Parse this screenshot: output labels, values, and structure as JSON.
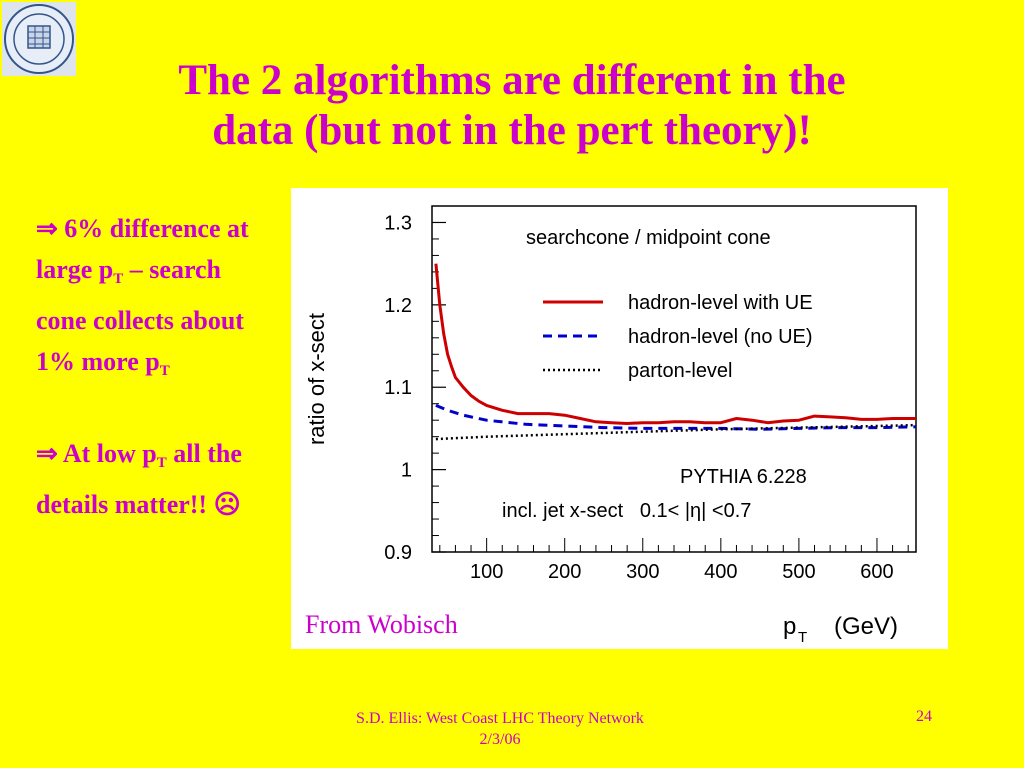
{
  "slide": {
    "title_line1": "The 2 algorithms are different in the",
    "title_line2": "data (but not in the pert theory)!",
    "bullet1": {
      "arrow": "⇒",
      "text1": " 6% difference at large p",
      "sub": "T",
      "text2": " – search cone collects about 1% more p",
      "sub2": "T"
    },
    "bullet2": {
      "arrow": "⇒",
      "text1": " At low p",
      "sub": "T",
      "text2": " all the details matter!! ",
      "emoji": "☹"
    },
    "source_note": "From Wobisch",
    "footer_line1": "S.D. Ellis: West Coast LHC Theory Network",
    "footer_line2": "2/3/06",
    "page_number": "24",
    "colors": {
      "background": "#ffff00",
      "text": "#cc00cc"
    }
  },
  "chart_data": {
    "type": "line",
    "title": "searchcone / midpoint cone",
    "ylabel": "ratio of x-sect",
    "xlabel_main": "p",
    "xlabel_sub": "T",
    "xlabel_unit": "(GeV)",
    "xlim": [
      30,
      650
    ],
    "ylim": [
      0.9,
      1.32
    ],
    "xticks": [
      100,
      200,
      300,
      400,
      500,
      600
    ],
    "yticks": [
      0.9,
      1,
      1.1,
      1.2,
      1.3
    ],
    "ytick_labels": [
      "0.9",
      "1",
      "1.1",
      "1.2",
      "1.3"
    ],
    "annotation1": "PYTHIA 6.228",
    "annotation2": "incl. jet x-sect   0.1< |η| <0.7",
    "legend_position": "top-right",
    "grid": false,
    "series": [
      {
        "name": "hadron-level with UE",
        "color": "#cc0000",
        "dash": "solid",
        "x": [
          35,
          40,
          45,
          50,
          55,
          60,
          70,
          80,
          90,
          100,
          120,
          140,
          160,
          180,
          200,
          220,
          240,
          260,
          280,
          300,
          320,
          340,
          360,
          380,
          400,
          420,
          440,
          460,
          480,
          500,
          520,
          540,
          560,
          580,
          600,
          620,
          650
        ],
        "y": [
          1.25,
          1.2,
          1.165,
          1.14,
          1.125,
          1.112,
          1.1,
          1.09,
          1.083,
          1.078,
          1.072,
          1.068,
          1.068,
          1.068,
          1.066,
          1.062,
          1.058,
          1.057,
          1.056,
          1.057,
          1.057,
          1.058,
          1.058,
          1.057,
          1.057,
          1.062,
          1.06,
          1.057,
          1.059,
          1.06,
          1.065,
          1.064,
          1.063,
          1.061,
          1.061,
          1.062,
          1.062
        ]
      },
      {
        "name": "hadron-level (no UE)",
        "color": "#0000cc",
        "dash": "dashed",
        "x": [
          35,
          50,
          70,
          100,
          150,
          200,
          250,
          300,
          350,
          400,
          450,
          500,
          550,
          600,
          650
        ],
        "y": [
          1.078,
          1.072,
          1.066,
          1.06,
          1.055,
          1.053,
          1.051,
          1.05,
          1.05,
          1.05,
          1.049,
          1.05,
          1.051,
          1.051,
          1.052
        ]
      },
      {
        "name": "parton-level",
        "color": "#000000",
        "dash": "dotted",
        "x": [
          35,
          100,
          200,
          300,
          400,
          500,
          600,
          650
        ],
        "y": [
          1.037,
          1.04,
          1.043,
          1.046,
          1.049,
          1.051,
          1.053,
          1.054
        ]
      }
    ]
  }
}
